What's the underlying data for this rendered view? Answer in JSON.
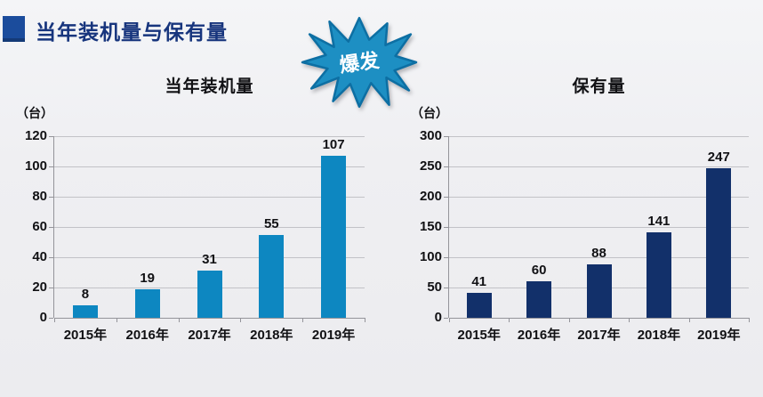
{
  "slide": {
    "title": "当年装机量与保有量",
    "burst_label": "爆发",
    "colors": {
      "title_text": "#17357d",
      "header_bullet": "#1b4c9c",
      "burst_fill": "#1d8fc3",
      "burst_stroke": "#0d6fa3",
      "background": "#efeff2",
      "gridline": "#c2c2c7",
      "axis": "#94949a"
    }
  },
  "chart_data": [
    {
      "type": "bar",
      "title": "当年装机量",
      "unit_label": "（台）",
      "categories": [
        "2015年",
        "2016年",
        "2017年",
        "2018年",
        "2019年"
      ],
      "values": [
        8,
        19,
        31,
        55,
        107
      ],
      "ylim": [
        0,
        120
      ],
      "yticks": [
        0,
        20,
        40,
        60,
        80,
        100,
        120
      ],
      "bar_color": "#0d87c1",
      "grid": true,
      "legend": "none",
      "data_labels": true
    },
    {
      "type": "bar",
      "title": "保有量",
      "unit_label": "（台）",
      "categories": [
        "2015年",
        "2016年",
        "2017年",
        "2018年",
        "2019年"
      ],
      "values": [
        41,
        60,
        88,
        141,
        247
      ],
      "ylim": [
        0,
        300
      ],
      "yticks": [
        0,
        50,
        100,
        150,
        200,
        250,
        300
      ],
      "bar_color": "#12306a",
      "grid": true,
      "legend": "none",
      "data_labels": true
    }
  ]
}
